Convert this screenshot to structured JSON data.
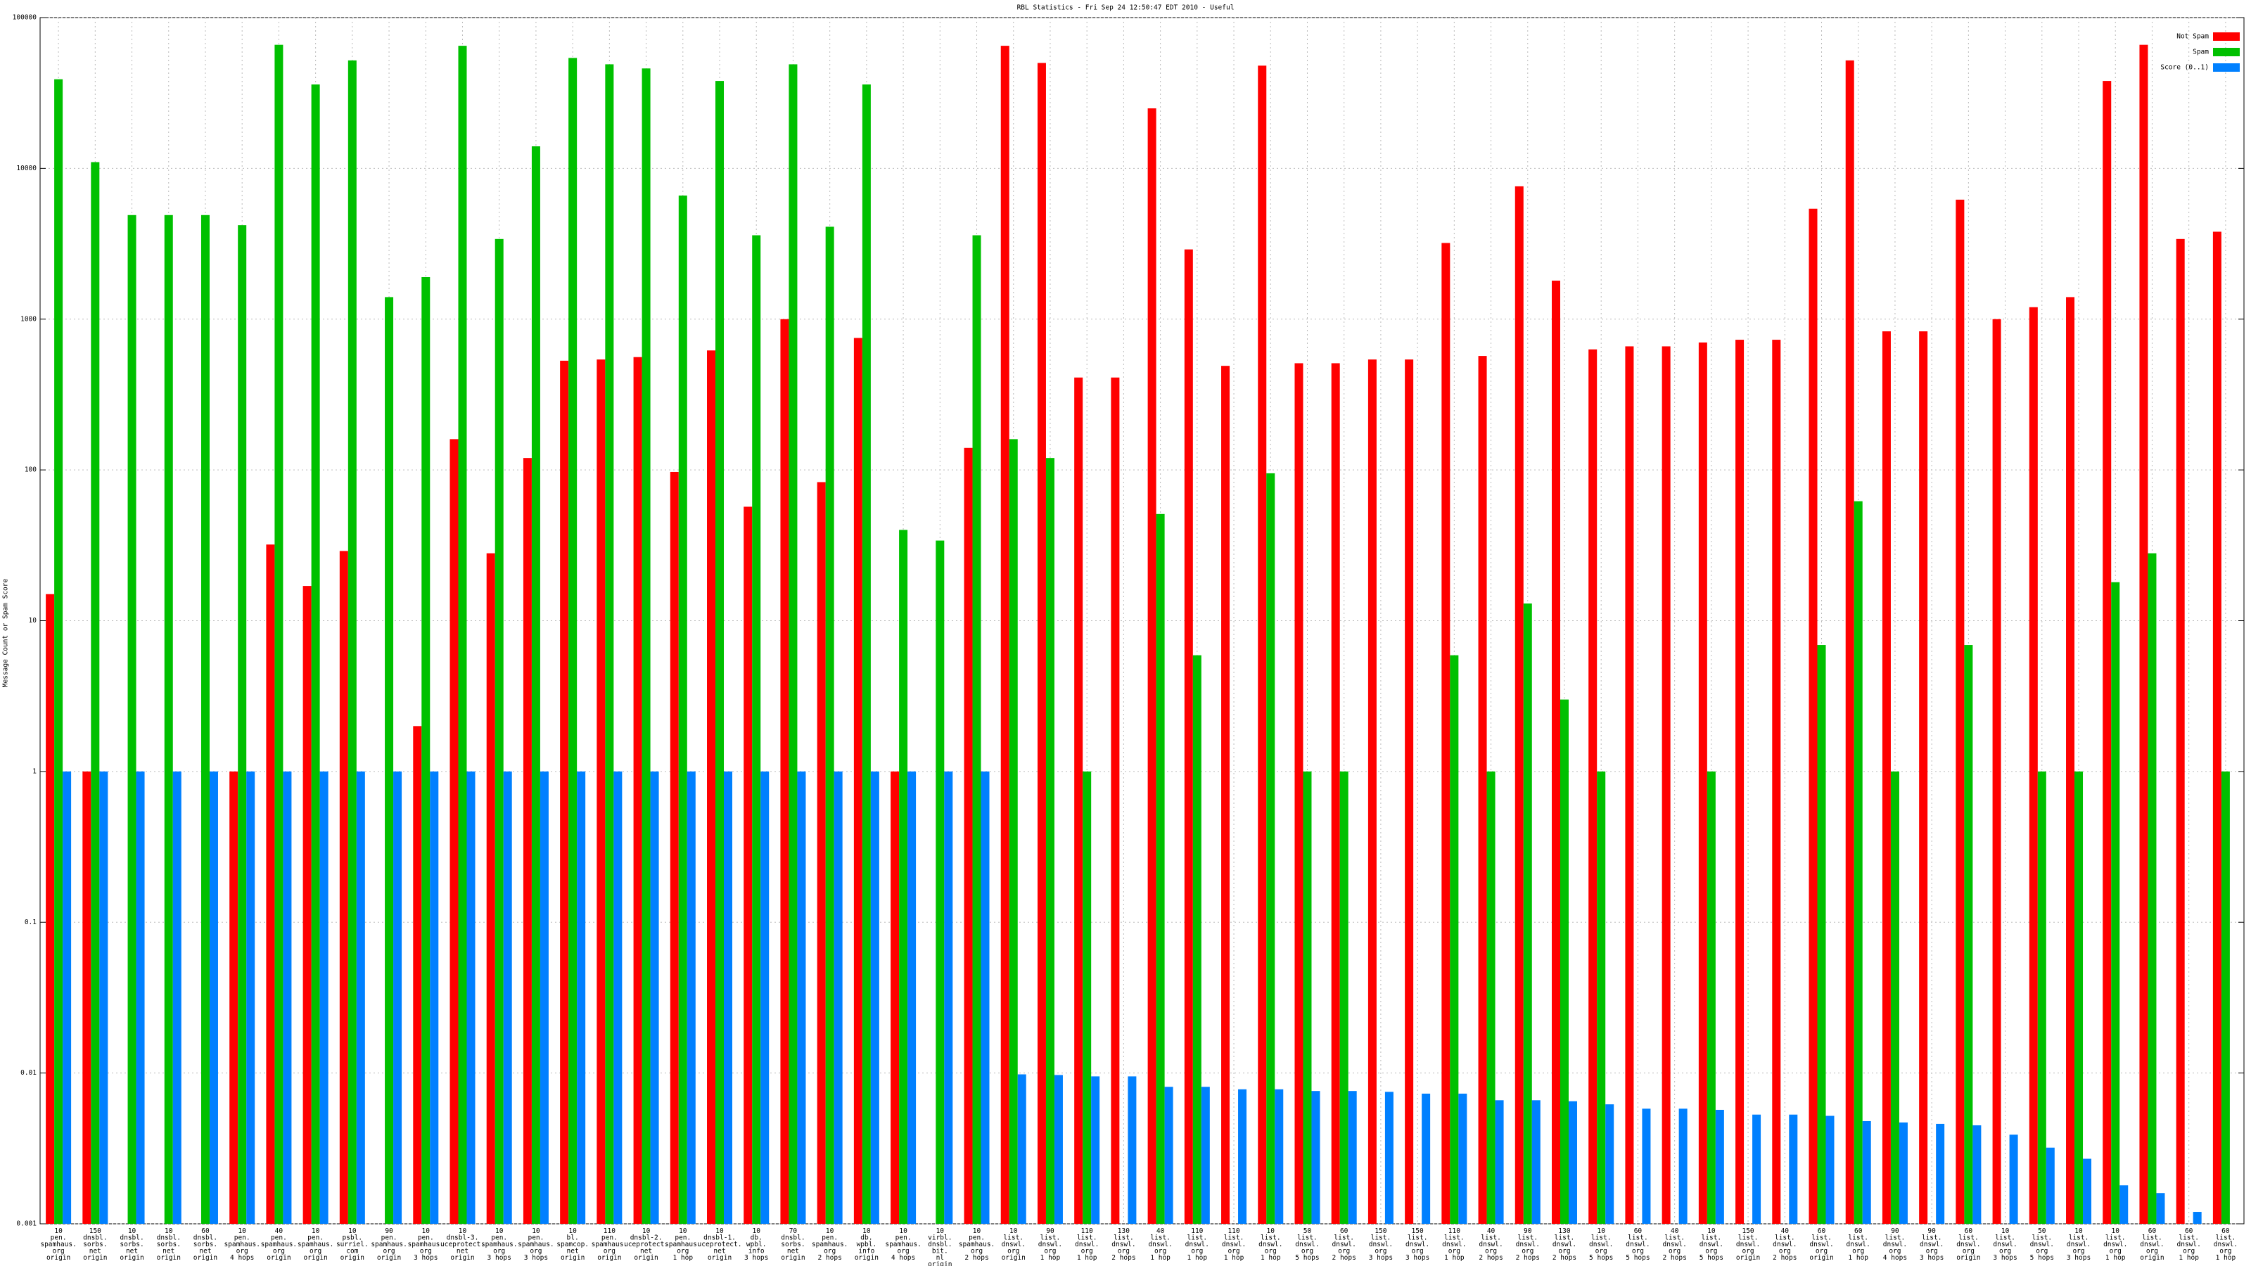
{
  "chart_data": {
    "type": "bar",
    "title": "RBL Statistics - Fri Sep 24 12:50:47 EDT 2010 - Useful",
    "y_label": "Message Count or Spam Score",
    "log_scale": true,
    "grid": true,
    "legend": "top-right",
    "ylim": [
      0.001,
      100000
    ],
    "yticks": [
      0.001,
      0.01,
      0.1,
      1,
      10,
      100,
      1000,
      10000,
      100000
    ],
    "categories": [
      [
        "10",
        "pen.",
        "spamhaus.",
        "org",
        "origin"
      ],
      [
        "150",
        "dnsbl.",
        "sorbs.",
        "net",
        "origin"
      ],
      [
        "10",
        "dnsbl.",
        "sorbs.",
        "net",
        "origin"
      ],
      [
        "10",
        "dnsbl.",
        "sorbs.",
        "net",
        "origin"
      ],
      [
        "60",
        "dnsbl.",
        "sorbs.",
        "net",
        "origin"
      ],
      [
        "10",
        "pen.",
        "spamhaus.",
        "org",
        "4 hops"
      ],
      [
        "40",
        "pen.",
        "spamhaus.",
        "org",
        "origin"
      ],
      [
        "10",
        "pen.",
        "spamhaus.",
        "org",
        "origin"
      ],
      [
        "10",
        "psbl.",
        "surriel.",
        "com",
        "origin"
      ],
      [
        "90",
        "pen.",
        "spamhaus.",
        "org",
        "origin"
      ],
      [
        "10",
        "pen.",
        "spamhaus.",
        "org",
        "3 hops"
      ],
      [
        "10",
        "dnsbl-3.",
        "uceprotect.",
        "net",
        "origin"
      ],
      [
        "10",
        "pen.",
        "spamhaus.",
        "org",
        "3 hops"
      ],
      [
        "10",
        "pen.",
        "spamhaus.",
        "org",
        "3 hops"
      ],
      [
        "10",
        "bl.",
        "spamcop.",
        "net",
        "origin"
      ],
      [
        "110",
        "pen.",
        "spamhaus.",
        "org",
        "origin"
      ],
      [
        "10",
        "dnsbl-2.",
        "uceprotect.",
        "net",
        "origin"
      ],
      [
        "10",
        "pen.",
        "spamhaus.",
        "org",
        "1 hop"
      ],
      [
        "10",
        "dnsbl-1.",
        "uceprotect.",
        "net",
        "origin"
      ],
      [
        "10",
        "db.",
        "wpbl.",
        "info",
        "3 hops"
      ],
      [
        "70",
        "dnsbl.",
        "sorbs.",
        "net",
        "origin"
      ],
      [
        "10",
        "pen.",
        "spamhaus.",
        "org",
        "2 hops"
      ],
      [
        "10",
        "db.",
        "wpbl.",
        "info",
        "origin"
      ],
      [
        "10",
        "pen.",
        "spamhaus.",
        "org",
        "4 hops"
      ],
      [
        "10",
        "virbl.",
        "dnsbl.",
        "bit.",
        "nl",
        "origin"
      ],
      [
        "10",
        "pen.",
        "spamhaus.",
        "org",
        "2 hops"
      ],
      [
        "10",
        "list.",
        "dnswl.",
        "org",
        "origin"
      ],
      [
        "90",
        "list.",
        "dnswl.",
        "org",
        "1 hop"
      ],
      [
        "110",
        "list.",
        "dnswl.",
        "org",
        "1 hop"
      ],
      [
        "130",
        "list.",
        "dnswl.",
        "org",
        "2 hops"
      ],
      [
        "40",
        "list.",
        "dnswl.",
        "org",
        "1 hop"
      ],
      [
        "110",
        "list.",
        "dnswl.",
        "org",
        "1 hop"
      ],
      [
        "110",
        "list.",
        "dnswl.",
        "org",
        "1 hop"
      ],
      [
        "10",
        "list.",
        "dnswl.",
        "org",
        "1 hop"
      ],
      [
        "50",
        "list.",
        "dnswl.",
        "org",
        "5 hops"
      ],
      [
        "60",
        "list.",
        "dnswl.",
        "org",
        "2 hops"
      ],
      [
        "150",
        "list.",
        "dnswl.",
        "org",
        "3 hops"
      ],
      [
        "150",
        "list.",
        "dnswl.",
        "org",
        "3 hops"
      ],
      [
        "110",
        "list.",
        "dnswl.",
        "org",
        "1 hop"
      ],
      [
        "40",
        "list.",
        "dnswl.",
        "org",
        "2 hops"
      ],
      [
        "90",
        "list.",
        "dnswl.",
        "org",
        "2 hops"
      ],
      [
        "130",
        "list.",
        "dnswl.",
        "org",
        "2 hops"
      ],
      [
        "10",
        "list.",
        "dnswl.",
        "org",
        "5 hops"
      ],
      [
        "60",
        "list.",
        "dnswl.",
        "org",
        "5 hops"
      ],
      [
        "40",
        "list.",
        "dnswl.",
        "org",
        "2 hops"
      ],
      [
        "10",
        "list.",
        "dnswl.",
        "org",
        "5 hops"
      ],
      [
        "150",
        "list.",
        "dnswl.",
        "org",
        "origin"
      ],
      [
        "40",
        "list.",
        "dnswl.",
        "org",
        "2 hops"
      ],
      [
        "60",
        "list.",
        "dnswl.",
        "org",
        "origin"
      ],
      [
        "60",
        "list.",
        "dnswl.",
        "org",
        "1 hop"
      ],
      [
        "90",
        "list.",
        "dnswl.",
        "org",
        "4 hops"
      ],
      [
        "90",
        "list.",
        "dnswl.",
        "org",
        "3 hops"
      ],
      [
        "60",
        "list.",
        "dnswl.",
        "org",
        "origin"
      ],
      [
        "10",
        "list.",
        "dnswl.",
        "org",
        "3 hops"
      ],
      [
        "50",
        "list.",
        "dnswl.",
        "org",
        "5 hops"
      ],
      [
        "10",
        "list.",
        "dnswl.",
        "org",
        "3 hops"
      ],
      [
        "10",
        "list.",
        "dnswl.",
        "org",
        "1 hop"
      ],
      [
        "60",
        "list.",
        "dnswl.",
        "org",
        "origin"
      ],
      [
        "60",
        "list.",
        "dnswl.",
        "org",
        "1 hop"
      ],
      [
        "60",
        "list.",
        "dnswl.",
        "org",
        "1 hop"
      ]
    ],
    "series": [
      {
        "name": "Not Spam",
        "color": "#ff0000",
        "values": [
          15,
          1,
          null,
          null,
          null,
          1,
          32,
          17,
          29,
          null,
          2,
          160,
          28,
          120,
          530,
          540,
          560,
          97,
          620,
          57,
          1000,
          83,
          750,
          1,
          null,
          140,
          65000,
          50000,
          410,
          410,
          25000,
          2900,
          490,
          48000,
          510,
          510,
          540,
          540,
          3200,
          570,
          7600,
          1800,
          630,
          660,
          660,
          700,
          730,
          730,
          5400,
          52000,
          830,
          830,
          6200,
          1000,
          1200,
          1400,
          38000,
          66000,
          3400,
          3800
        ]
      },
      {
        "name": "Spam",
        "color": "#00c000",
        "values": [
          39000,
          11000,
          4900,
          4900,
          4900,
          4200,
          66000,
          36000,
          52000,
          1400,
          1900,
          65000,
          3400,
          14000,
          54000,
          49000,
          46000,
          6600,
          38000,
          3600,
          49000,
          4100,
          36000,
          40,
          34,
          3600,
          160,
          120,
          1,
          null,
          51,
          5.9,
          null,
          95,
          1,
          1,
          null,
          null,
          5.9,
          1,
          13,
          3,
          1,
          null,
          null,
          1,
          null,
          null,
          6.9,
          62,
          1,
          null,
          6.9,
          null,
          1,
          1,
          18,
          28,
          null,
          1
        ]
      },
      {
        "name": "Score (0..1)",
        "color": "#0080ff",
        "values": [
          1,
          1,
          1,
          1,
          1,
          1,
          1,
          1,
          1,
          1,
          1,
          1,
          1,
          1,
          1,
          1,
          1,
          1,
          1,
          1,
          1,
          1,
          1,
          1,
          1,
          1,
          0.0098,
          0.0097,
          0.0095,
          0.0095,
          0.0081,
          0.0081,
          0.0078,
          0.0078,
          0.0076,
          0.0076,
          0.0075,
          0.0073,
          0.0073,
          0.0066,
          0.0066,
          0.0065,
          0.0062,
          0.0058,
          0.0058,
          0.0057,
          0.0053,
          0.0053,
          0.0052,
          0.0048,
          0.0047,
          0.0046,
          0.0045,
          0.0039,
          0.0032,
          0.0027,
          0.0018,
          0.0016,
          0.0012,
          0.001
        ]
      }
    ]
  }
}
